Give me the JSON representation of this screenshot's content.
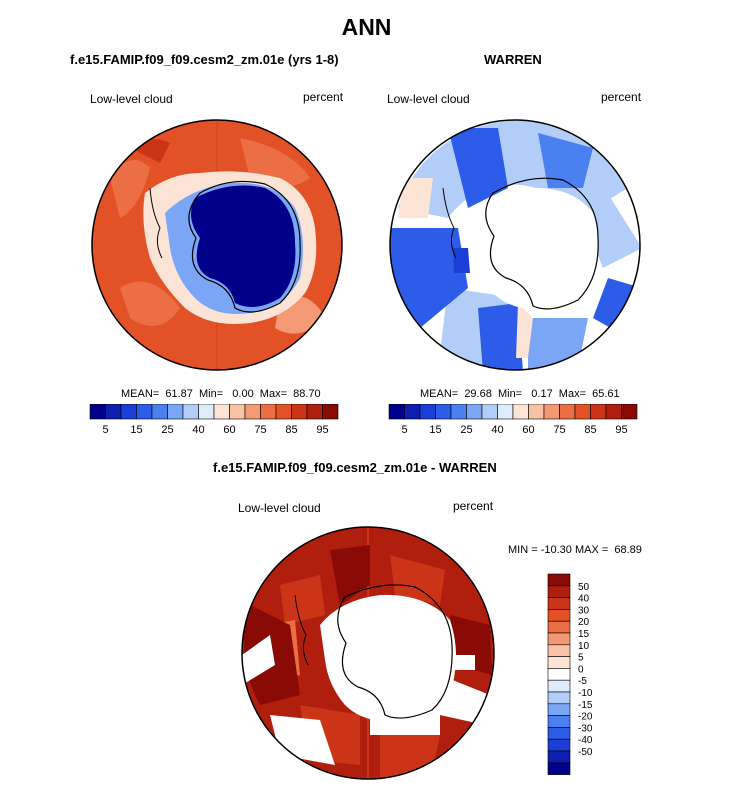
{
  "main_title": "ANN",
  "colors": {
    "ocean_fill": "#e35227",
    "ice_fill": "#00008a",
    "coast": "#000000",
    "missing": "#ffffff"
  },
  "panels": {
    "p1": {
      "title": "f.e15.FAMIP.f09_f09.cesm2_zm.01e (yrs 1-8)",
      "left_label": "Low-level cloud",
      "right_label": "percent",
      "stats": "MEAN=  61.87  Min=   0.00  Max=  88.70"
    },
    "p2": {
      "title": "WARREN",
      "left_label": "Low-level cloud",
      "right_label": "percent",
      "stats": "MEAN=  29.68  Min=   0.17  Max=  65.61"
    },
    "p3": {
      "title": "f.e15.FAMIP.f09_f09.cesm2_zm.01e - WARREN",
      "left_label": "Low-level cloud",
      "right_label": "percent",
      "stats": "MIN = -10.30 MAX =  68.89"
    }
  },
  "chart_data": [
    {
      "type": "heatmap",
      "title": "f.e15.FAMIP.f09_f09.cesm2_zm.01e (yrs 1-8)",
      "field": "Low-level cloud",
      "units": "percent",
      "projection": "south polar stereographic",
      "stats": {
        "mean": 61.87,
        "min": 0.0,
        "max": 88.7
      },
      "colorbar": {
        "colors": [
          "#00008a",
          "#0d1eb0",
          "#1a3ed6",
          "#2c5ce8",
          "#4a80f0",
          "#7ba6f5",
          "#b2cdf7",
          "#deebfa",
          "#fbe4d5",
          "#f8c2a6",
          "#f39a74",
          "#ec6e45",
          "#e35227",
          "#cc3418",
          "#b01e0e",
          "#8a0a05"
        ],
        "labels": [
          "5",
          "15",
          "25",
          "40",
          "60",
          "75",
          "85",
          "95"
        ]
      }
    },
    {
      "type": "heatmap",
      "title": "WARREN",
      "field": "Low-level cloud",
      "units": "percent",
      "projection": "south polar stereographic",
      "stats": {
        "mean": 29.68,
        "min": 0.17,
        "max": 65.61
      },
      "colorbar": {
        "colors": [
          "#00008a",
          "#0d1eb0",
          "#1a3ed6",
          "#2c5ce8",
          "#4a80f0",
          "#7ba6f5",
          "#b2cdf7",
          "#deebfa",
          "#fbe4d5",
          "#f8c2a6",
          "#f39a74",
          "#ec6e45",
          "#e35227",
          "#cc3418",
          "#b01e0e",
          "#8a0a05"
        ],
        "labels": [
          "5",
          "15",
          "25",
          "40",
          "60",
          "75",
          "85",
          "95"
        ]
      }
    },
    {
      "type": "heatmap",
      "title": "f.e15.FAMIP.f09_f09.cesm2_zm.01e - WARREN",
      "field": "Low-level cloud",
      "units": "percent",
      "projection": "south polar stereographic",
      "stats": {
        "min": -10.3,
        "max": 68.89
      },
      "colorbar": {
        "orientation": "vertical",
        "colors": [
          "#8a0a05",
          "#b01e0e",
          "#cc3418",
          "#e35227",
          "#ec6e45",
          "#f39a74",
          "#f8c2a6",
          "#fbe4d5",
          "#ffffff",
          "#deebfa",
          "#b2cdf7",
          "#7ba6f5",
          "#4a80f0",
          "#2c5ce8",
          "#1a3ed6",
          "#0d1eb0",
          "#00008a"
        ],
        "labels": [
          "50",
          "40",
          "30",
          "20",
          "15",
          "10",
          "5",
          "0",
          "-5",
          "-10",
          "-15",
          "-20",
          "-30",
          "-40",
          "-50"
        ]
      }
    }
  ]
}
